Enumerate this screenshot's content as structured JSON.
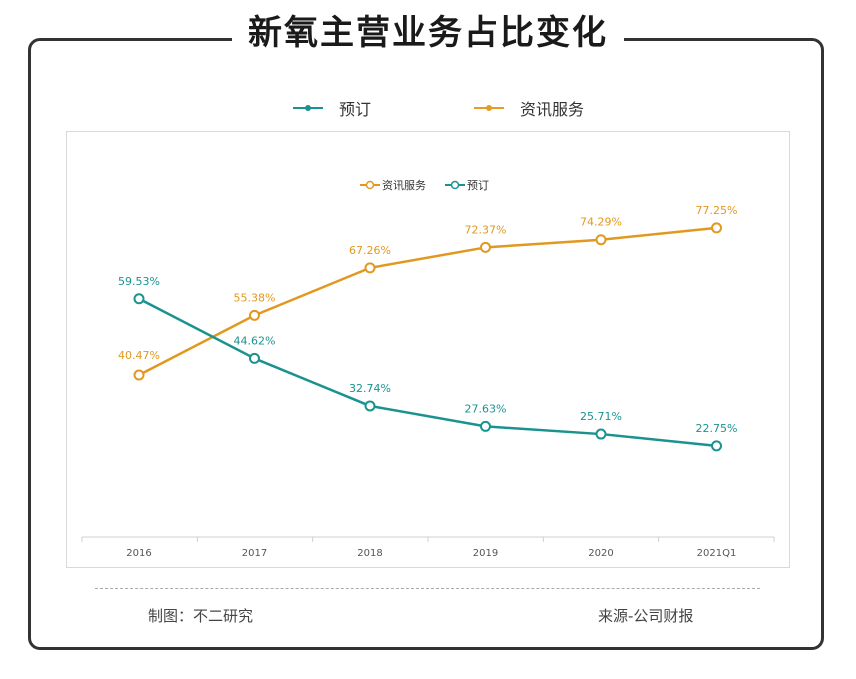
{
  "title": "新氧主营业务占比变化",
  "legend_outer": [
    {
      "name": "预订",
      "color": "#1a9390"
    },
    {
      "name": "资讯服务",
      "color": "#e79d25"
    }
  ],
  "chart_data": {
    "type": "line",
    "categories": [
      "2016",
      "2017",
      "2018",
      "2019",
      "2020",
      "2021Q1"
    ],
    "legend": [
      "资讯服务",
      "预订"
    ],
    "legend_position": "top",
    "series": [
      {
        "name": "资讯服务",
        "color": "#e2981f",
        "values": [
          40.47,
          55.38,
          67.26,
          72.37,
          74.29,
          77.25
        ],
        "labels": [
          "40.47%",
          "55.38%",
          "67.26%",
          "72.37%",
          "74.29%",
          "77.25%"
        ]
      },
      {
        "name": "预订",
        "color": "#1a9390",
        "values": [
          59.53,
          44.62,
          32.74,
          27.63,
          25.71,
          22.75
        ],
        "labels": [
          "59.53%",
          "44.62%",
          "32.74%",
          "27.63%",
          "25.71%",
          "22.75%"
        ]
      }
    ],
    "ylim": [
      0,
      100
    ],
    "grid": false
  },
  "footer": {
    "left": "制图：不二研究",
    "right": "来源-公司财报"
  }
}
